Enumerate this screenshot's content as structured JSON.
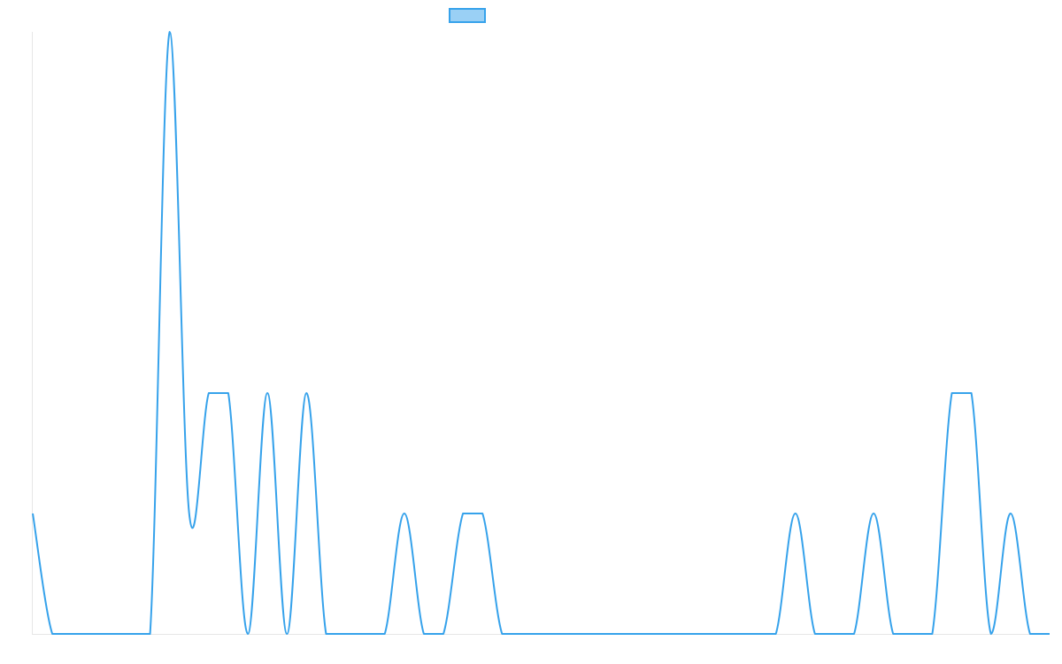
{
  "chart_data": {
    "type": "line",
    "title": "",
    "xlabel": "",
    "ylabel": "",
    "ylim": [
      0,
      5
    ],
    "grid": false,
    "legend": {
      "position": "top-center",
      "entries": [
        {
          "name": ""
        }
      ]
    },
    "series": [
      {
        "name": "",
        "color": "#36a2eb",
        "fill_color": "#9ad0f5",
        "values": [
          1,
          0,
          0,
          0,
          0,
          0,
          0,
          5,
          1,
          2,
          2,
          0,
          2,
          0,
          2,
          0,
          0,
          0,
          0,
          1,
          0,
          0,
          1,
          1,
          0,
          0,
          0,
          0,
          0,
          0,
          0,
          0,
          0,
          0,
          0,
          0,
          0,
          0,
          0,
          1,
          0,
          0,
          0,
          1,
          0,
          0,
          0,
          2,
          2,
          0,
          1,
          0,
          0
        ]
      }
    ]
  }
}
